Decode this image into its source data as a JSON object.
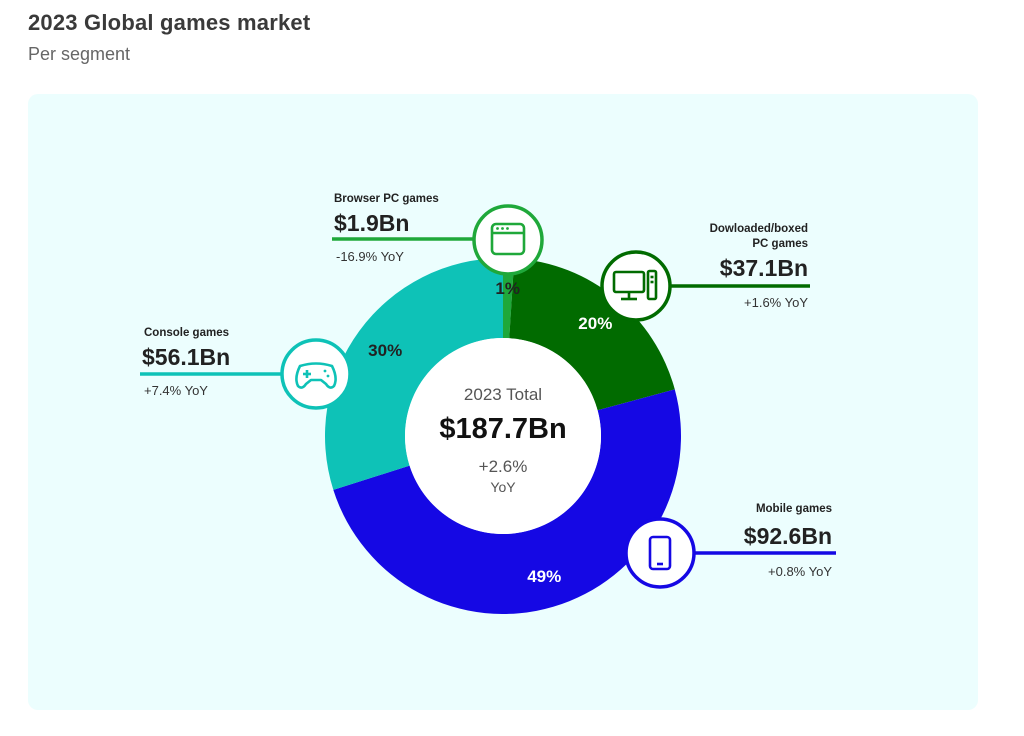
{
  "header": {
    "title": "2023 Global games market",
    "subtitle": "Per segment"
  },
  "center": {
    "title": "2023 Total",
    "value": "$187.7Bn",
    "yoy": "+2.6%",
    "yoy_unit": "YoY"
  },
  "segments": [
    {
      "key": "browser",
      "title_lines": [
        "Browser PC games"
      ],
      "value": "$1.9Bn",
      "yoy": "-16.9% YoY",
      "pct_label": "1%",
      "color": "#1fa83a",
      "icon": "browser-window-icon"
    },
    {
      "key": "downloaded",
      "title_lines": [
        "Dowloaded/boxed",
        "PC games"
      ],
      "value": "$37.1Bn",
      "yoy": "+1.6% YoY",
      "pct_label": "20%",
      "color": "#016b00",
      "icon": "desktop-pc-icon"
    },
    {
      "key": "mobile",
      "title_lines": [
        "Mobile games"
      ],
      "value": "$92.6Bn",
      "yoy": "+0.8% YoY",
      "pct_label": "49%",
      "color": "#1508e4",
      "icon": "smartphone-icon"
    },
    {
      "key": "console",
      "title_lines": [
        "Console games"
      ],
      "value": "$56.1Bn",
      "yoy": "+7.4% YoY",
      "pct_label": "30%",
      "color": "#0ec2b7",
      "icon": "gamepad-icon"
    }
  ],
  "chart_data": {
    "type": "pie",
    "variant": "donut",
    "title": "2023 Global games market",
    "subtitle": "Per segment",
    "unit": "USD billions",
    "categories": [
      "Browser PC games",
      "Dowloaded/boxed PC games",
      "Mobile games",
      "Console games"
    ],
    "values": [
      1.9,
      37.1,
      92.6,
      56.1
    ],
    "percent_labels": [
      "1%",
      "20%",
      "49%",
      "30%"
    ],
    "yoy": [
      "-16.9%",
      "+1.6%",
      "+0.8%",
      "+7.4%"
    ],
    "total": 187.7,
    "total_yoy": "+2.6%",
    "colors": [
      "#1fa83a",
      "#016b00",
      "#1508e4",
      "#0ec2b7"
    ],
    "start_angle": "top",
    "direction": "clockwise"
  }
}
